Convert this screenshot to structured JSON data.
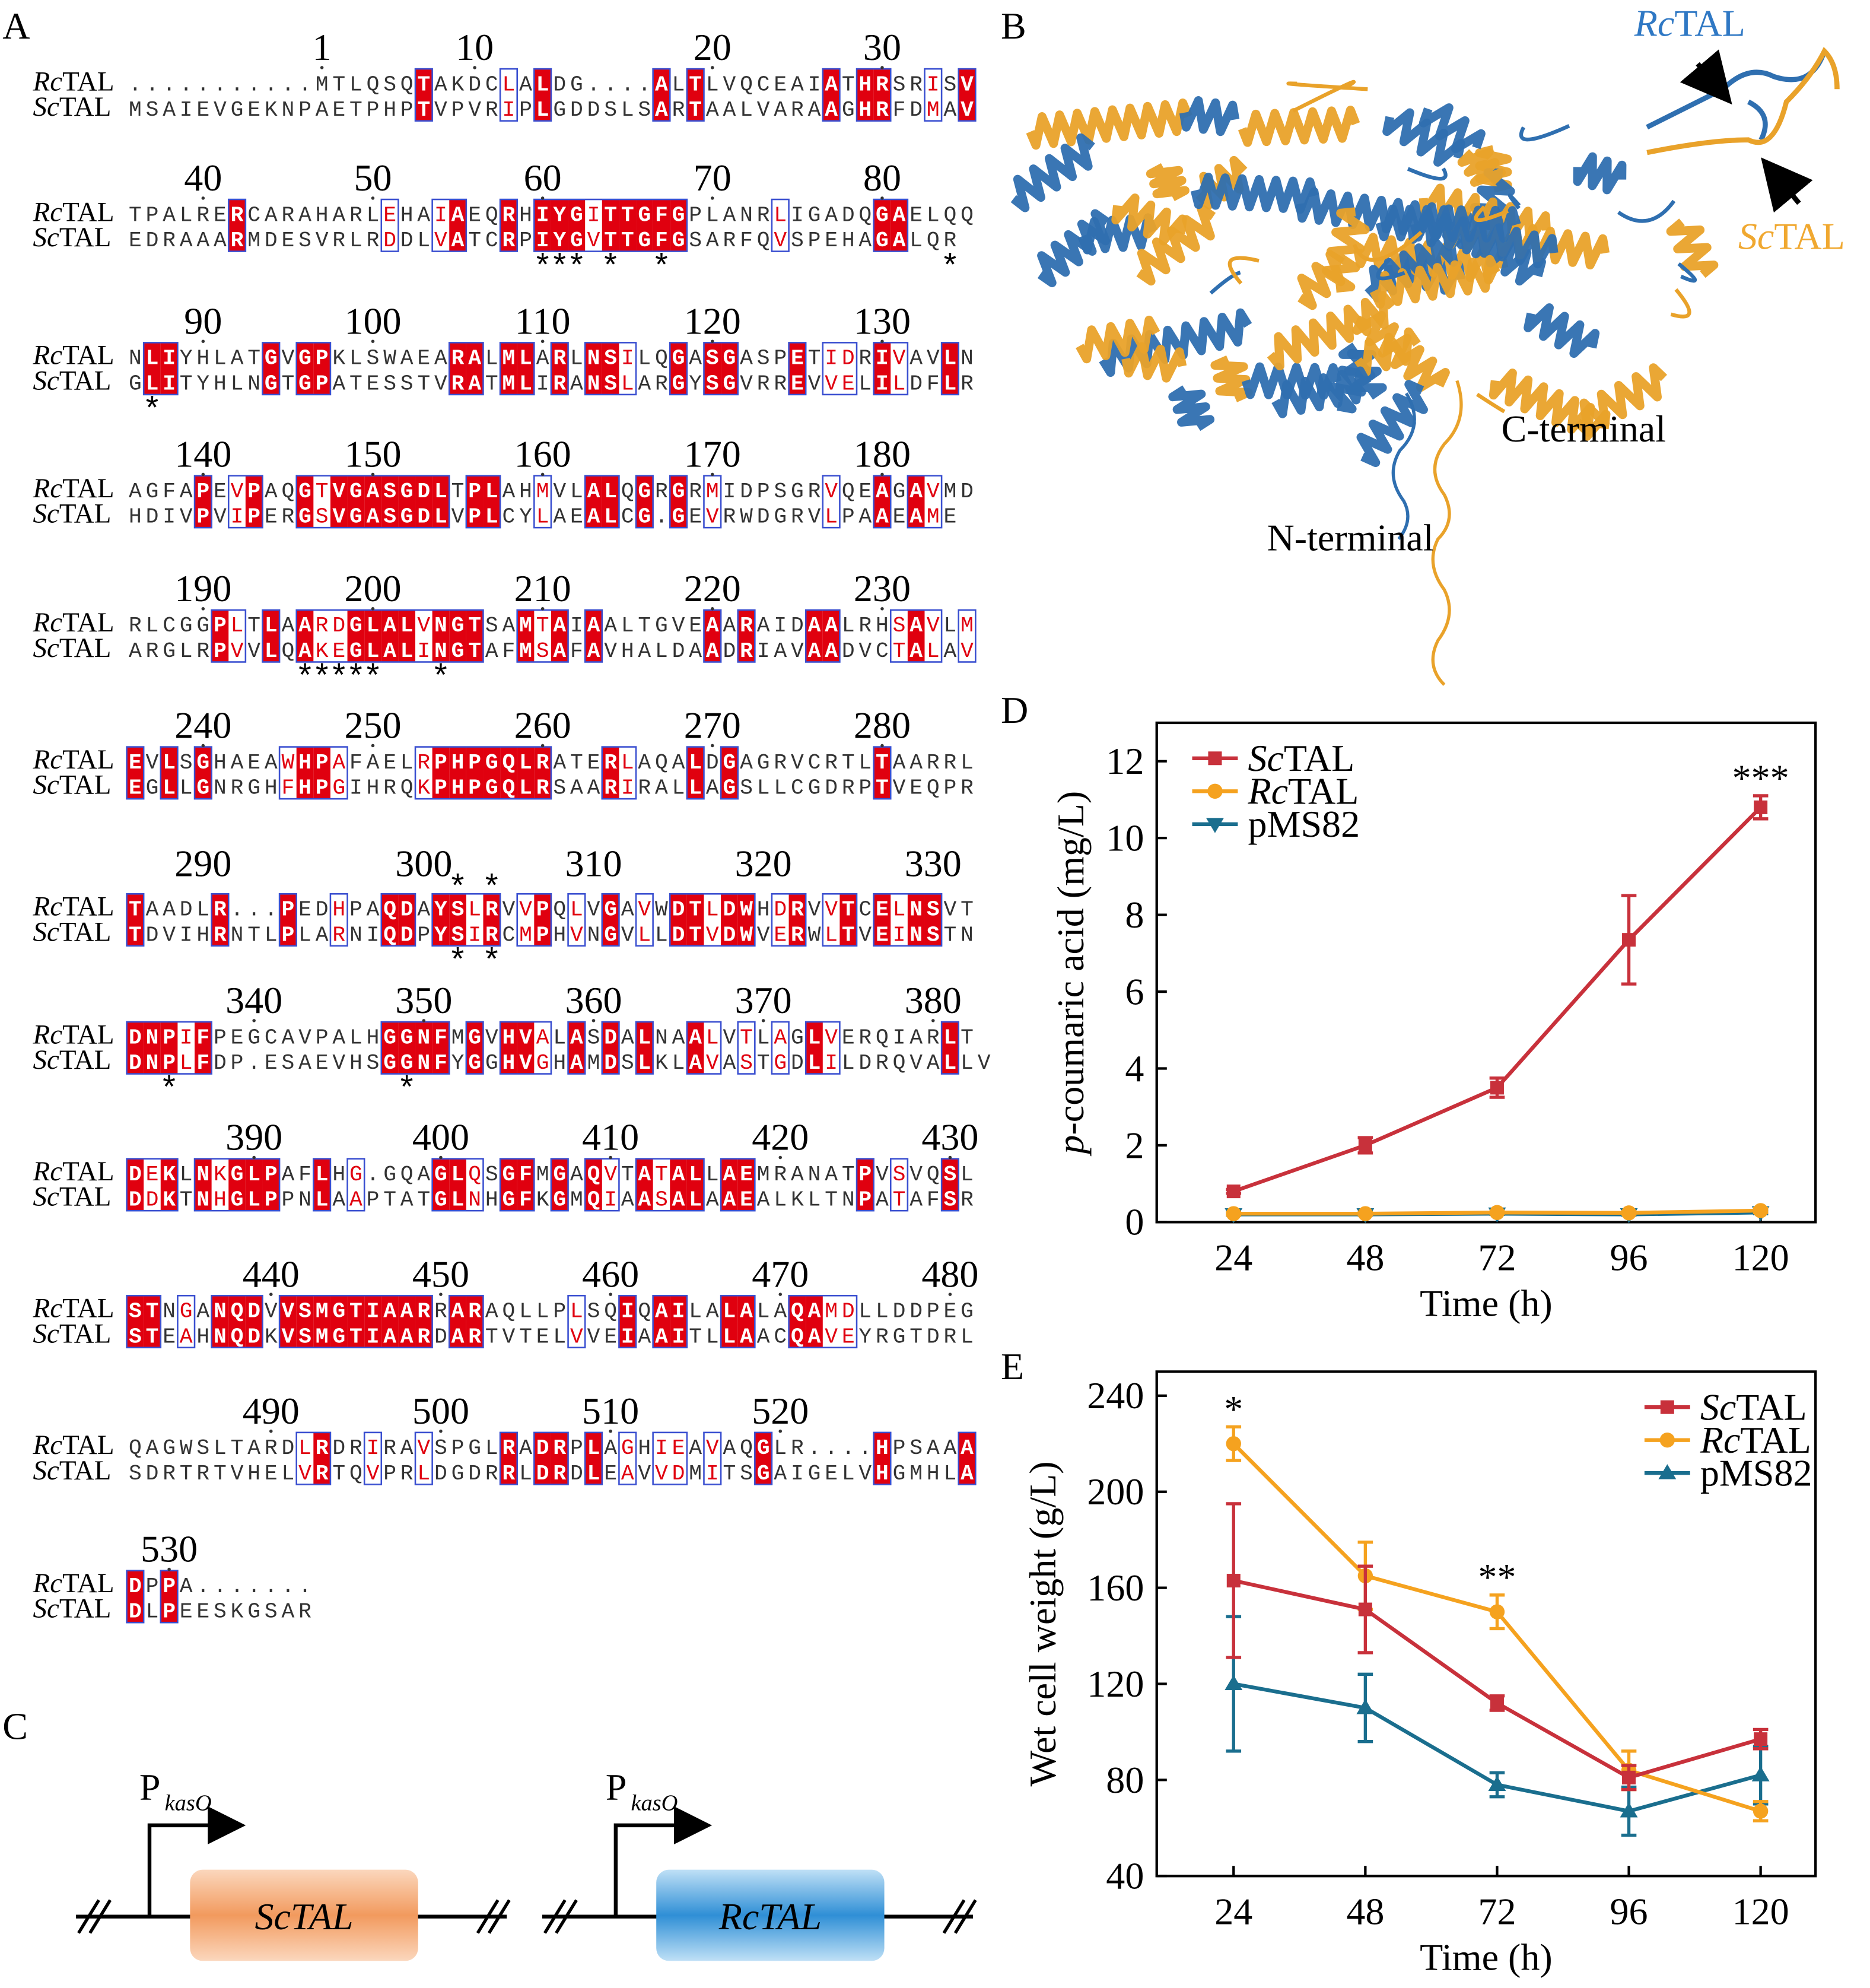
{
  "panel_labels": [
    "A",
    "B",
    "C",
    "D",
    "E"
  ],
  "alignment": {
    "row_names": [
      "RcTAL",
      "ScTAL"
    ],
    "blocks": [
      {
        "numbers": [
          1,
          10,
          20,
          30
        ],
        "rows": [
          "...........MTLQSQTAKDCLALDG....ALTLVQCEAIATHRSRISV",
          "MSAIEVGEKNPAETPHPTVPVRIPLGDDSLSARTAALVARAAGHRFDMAV"
        ]
      },
      {
        "numbers": [
          40,
          50,
          60,
          70,
          80
        ],
        "rows": [
          "TPALRERCARAHARLEHAIAEQRHIYGITTGFGPLANRLIGADQGAELQQ",
          "EDRAAARMDESVRLRDDLVATCRPIYGVTTGFGSARFQVSPEHAGALQR"
        ],
        "stars_below": "                        *** *  *                *"
      },
      {
        "numbers": [
          90,
          100,
          110,
          120,
          130
        ],
        "rows": [
          "NLIYHLATGVGPKLSWAEARALMLARLNSILQGASGASPETIDRIVAVLN",
          "GLITYHLNGTGPATESSTVRATMLIRANSLARGYSGVRREVVELILDFLR"
        ],
        "stars_below": " *"
      },
      {
        "numbers": [
          140,
          150,
          160,
          170,
          180
        ],
        "rows": [
          "AGFAPEVPAQGTVGASGDLTPLAHMVLALQGRGRMIDPSGRVQEAGAVMD",
          "HDIVPVIPERGSVGASGDLVPLCYLAEALCG.GEVRWDGRVLPAAEAME"
        ]
      },
      {
        "numbers": [
          190,
          200,
          210,
          220,
          230
        ],
        "rows": [
          "RLCGGPLTLAARDGLALVNGTSAMTAIAALTGVEAARAIDAALRHSAVLM",
          "ARGLRPVVLQAKEGLALINGTAFMSAFAVHALDAADRIAVAADVCTALAV"
        ],
        "stars_below": "          *****   *"
      },
      {
        "numbers": [
          240,
          250,
          260,
          270,
          280
        ],
        "rows": [
          "EVLSGHAEAWHPAFAELRPHPGQLRATERLAQALDGAGRVCRTLTAARRL",
          "EGLLGNRGHFHPGIHRQKPHPGQLRSAARIRALLAGSLLCGDRPTVEQPR"
        ]
      },
      {
        "numbers": [
          290,
          300,
          310,
          320,
          330
        ],
        "rows": [
          "TAADLR...PEDHPAQDAYSLRVVPQLVGAVWDTLDWHDRVVTCELNSVT",
          "TDVIHRNTLPLARNIQDPYSIRCMPHVNGVLLDTVDWVERWLTVEINSTN"
        ],
        "stars_above": "                   * *",
        "stars_below": "                   * *"
      },
      {
        "numbers": [
          340,
          350,
          360,
          370,
          380
        ],
        "rows": [
          "DNPIFPEGCAVPALHGGNFMGVHVALASDALNAALVTLAGLVERQIARLT",
          "DNPLFDP.ESAEVHSGGNFYGGHVGHAMDSLKLAVASTGDLILDRQVALLV"
        ],
        "stars_below": "  *             *"
      },
      {
        "numbers": [
          390,
          400,
          410,
          420,
          430
        ],
        "rows": [
          "DEKLNKGLPAFLHG.GQAGLQSGFMGAQVTATALLAEMRANATPVSVQSL",
          "DDKTNHGLPPNLAAPTATGLNHGFKGMQIAASALAAEALKLTNPATAFSR"
        ]
      },
      {
        "numbers": [
          440,
          450,
          460,
          470,
          480
        ],
        "rows": [
          "STNGANQDVVSMGTIAARRARAQLLPLSQIQAILALALAQAMDLLDDPEG",
          "STEAHNQDKVSMGTIAARDARTVTELVVEIAAITLLAACQAVEYRGTDRL"
        ]
      },
      {
        "numbers": [
          490,
          500,
          510,
          520
        ],
        "rows": [
          "QAGWSLTARDLRDRIRAVSPGLRADRPLAGHIEAVAQGLR....HPSAAA",
          "SDRTRTVHELVRTQVPRLDGDRRLDRDLEAVVDMITSGAIGELVHGMHLA"
        ]
      },
      {
        "numbers": [
          530
        ],
        "rows": [
          "DPPA.......",
          "DLPEESKGSAR"
        ]
      }
    ]
  },
  "structure": {
    "rc_label": "RcTAL",
    "sc_label": "ScTAL",
    "c_terminal": "C-terminal",
    "n_terminal": "N-terminal"
  },
  "constructs": [
    {
      "promoter": "P",
      "promoter_subscript": "kasO",
      "gene": "ScTAL"
    },
    {
      "promoter": "P",
      "promoter_subscript": "kasO",
      "gene": "RcTAL"
    }
  ],
  "chart_data": [
    {
      "type": "line",
      "x": [
        24,
        48,
        72,
        96,
        120
      ],
      "x_label": "Time (h)",
      "y_label": "p-coumaric acid (mg/L)",
      "xlim": [
        10,
        130
      ],
      "ylim": [
        0,
        13
      ],
      "xticks": [
        24,
        48,
        72,
        96,
        120
      ],
      "yticks": [
        0,
        2,
        4,
        6,
        8,
        10,
        12
      ],
      "legend": "upper left",
      "series": [
        {
          "name": "ScTAL",
          "color": "#c8313b",
          "marker": "square",
          "values": [
            0.8,
            2.0,
            3.5,
            7.35,
            10.8
          ],
          "errors": [
            0.05,
            0.2,
            0.25,
            1.15,
            0.3
          ]
        },
        {
          "name": "RcTAL",
          "color": "#f5a21f",
          "marker": "circle",
          "values": [
            0.22,
            0.22,
            0.25,
            0.24,
            0.3
          ],
          "errors": [
            0.03,
            0.03,
            0.03,
            0.03,
            0.05
          ]
        },
        {
          "name": "pMS82",
          "color": "#1a6e8e",
          "marker": "triangle-down",
          "values": [
            0.2,
            0.2,
            0.22,
            0.2,
            0.25
          ],
          "errors": [
            0.02,
            0.02,
            0.02,
            0.02,
            0.03
          ]
        }
      ],
      "annotations": [
        {
          "x": 120,
          "text": "***"
        }
      ]
    },
    {
      "type": "line",
      "x": [
        24,
        48,
        72,
        96,
        120
      ],
      "x_label": "Time (h)",
      "y_label": "Wet cell weight (g/L)",
      "xlim": [
        10,
        130
      ],
      "ylim": [
        40,
        250
      ],
      "xticks": [
        24,
        48,
        72,
        96,
        120
      ],
      "yticks": [
        40,
        80,
        120,
        160,
        200,
        240
      ],
      "legend": "upper right",
      "series": [
        {
          "name": "ScTAL",
          "color": "#c8313b",
          "marker": "square",
          "values": [
            163,
            151,
            112,
            81,
            97
          ],
          "errors": [
            32,
            18,
            3,
            5,
            4
          ]
        },
        {
          "name": "RcTAL",
          "color": "#f5a21f",
          "marker": "circle",
          "values": [
            220,
            165,
            150,
            84,
            67
          ],
          "errors": [
            7,
            14,
            7,
            8,
            4
          ]
        },
        {
          "name": "pMS82",
          "color": "#1a6e8e",
          "marker": "triangle-up",
          "values": [
            120,
            110,
            78,
            67,
            82
          ],
          "errors": [
            28,
            14,
            5,
            10,
            12
          ]
        }
      ],
      "annotations": [
        {
          "x": 24,
          "text": "*"
        },
        {
          "x": 72,
          "text": "**"
        }
      ]
    }
  ]
}
